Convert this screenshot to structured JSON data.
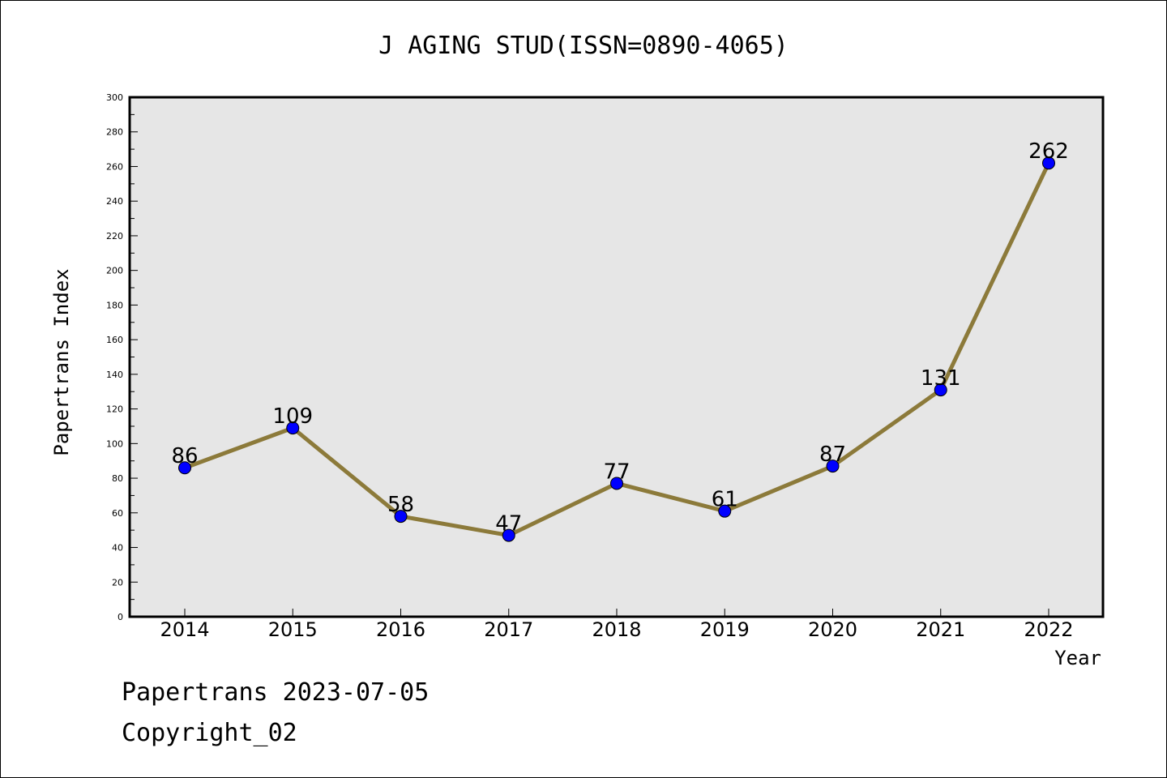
{
  "chart_data": {
    "type": "line",
    "title": "J AGING STUD(ISSN=0890-4065)",
    "xlabel": "Year",
    "ylabel": "Papertrans Index",
    "categories": [
      "2014",
      "2015",
      "2016",
      "2017",
      "2018",
      "2019",
      "2020",
      "2021",
      "2022"
    ],
    "series": [
      {
        "values": [
          86,
          109,
          58,
          47,
          77,
          61,
          87,
          131,
          262
        ]
      }
    ],
    "ylim": [
      0,
      300
    ],
    "yticks": [
      "0",
      "20",
      "40",
      "60",
      "80",
      "100",
      "120",
      "140",
      "160",
      "180",
      "200",
      "220",
      "240",
      "260",
      "280",
      "300"
    ],
    "ytick_values": [
      0,
      20,
      40,
      60,
      80,
      100,
      120,
      140,
      160,
      180,
      200,
      220,
      240,
      260,
      280,
      300
    ],
    "grid": false,
    "colors": {
      "plot_background": "#e6e6e6",
      "line": "#8c7a3a",
      "marker": "#0000ff"
    }
  },
  "footer": {
    "line1": "Papertrans 2023-07-05",
    "line2": "Copyright_02"
  }
}
